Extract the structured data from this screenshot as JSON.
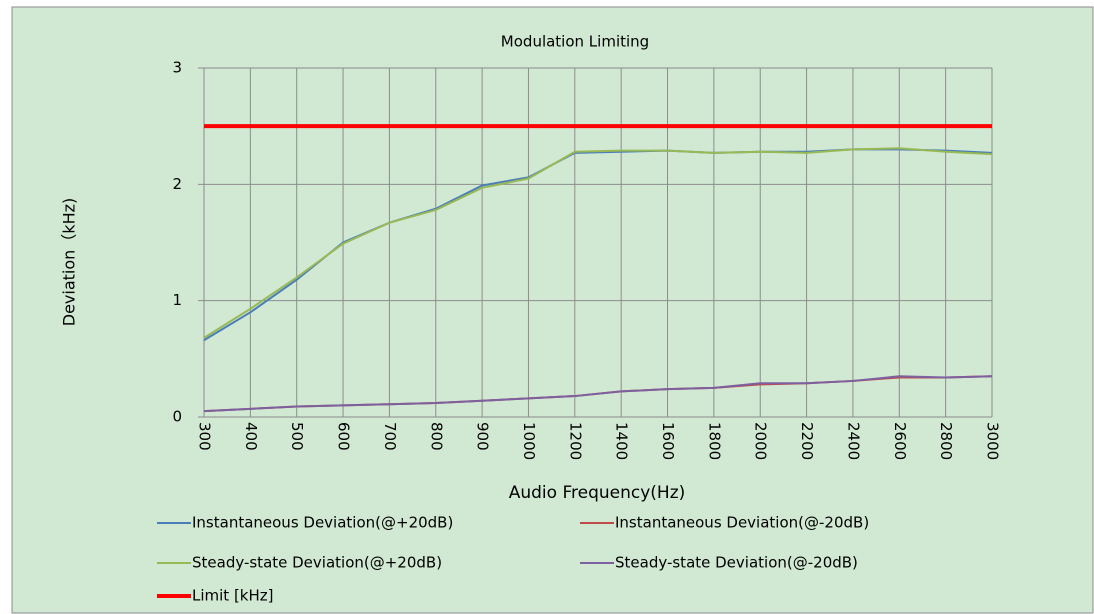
{
  "chart_data": {
    "type": "line",
    "title": "Modulation Limiting",
    "x_label": "Audio Frequency(Hz)",
    "y_label": "Deviation（kHz)",
    "categories": [
      "300",
      "400",
      "500",
      "600",
      "700",
      "800",
      "900",
      "1000",
      "1200",
      "1400",
      "1600",
      "1800",
      "2000",
      "2200",
      "2400",
      "2600",
      "2800",
      "3000"
    ],
    "series": [
      {
        "name": "Instantaneous Deviation(@+20dB)",
        "color": "#4a7ebb",
        "values": [
          0.66,
          0.9,
          1.18,
          1.5,
          1.67,
          1.79,
          1.99,
          2.06,
          2.27,
          2.28,
          2.29,
          2.27,
          2.28,
          2.28,
          2.3,
          2.3,
          2.29,
          2.27
        ]
      },
      {
        "name": "Instantaneous Deviation(@-20dB)",
        "color": "#be4b48",
        "values": [
          0.05,
          0.07,
          0.09,
          0.1,
          0.11,
          0.12,
          0.14,
          0.16,
          0.18,
          0.22,
          0.24,
          0.25,
          0.28,
          0.29,
          0.31,
          0.34,
          0.34,
          0.35
        ]
      },
      {
        "name": "Steady-state Deviation(@+20dB)",
        "color": "#98b954",
        "values": [
          0.68,
          0.93,
          1.2,
          1.49,
          1.67,
          1.78,
          1.97,
          2.05,
          2.28,
          2.29,
          2.29,
          2.27,
          2.28,
          2.27,
          2.3,
          2.31,
          2.28,
          2.26
        ]
      },
      {
        "name": "Steady-state Deviation(@-20dB)",
        "color": "#7d60a0",
        "values": [
          0.05,
          0.07,
          0.09,
          0.1,
          0.11,
          0.12,
          0.14,
          0.16,
          0.18,
          0.22,
          0.24,
          0.25,
          0.29,
          0.29,
          0.31,
          0.35,
          0.34,
          0.35
        ]
      },
      {
        "name": "Limit [kHz]",
        "color": "#ff0000",
        "values": [
          2.5,
          2.5,
          2.5,
          2.5,
          2.5,
          2.5,
          2.5,
          2.5,
          2.5,
          2.5,
          2.5,
          2.5,
          2.5,
          2.5,
          2.5,
          2.5,
          2.5,
          2.5
        ]
      }
    ],
    "ylim": [
      0,
      3
    ],
    "yticks": [
      0,
      1,
      2,
      3
    ],
    "grid": true
  }
}
